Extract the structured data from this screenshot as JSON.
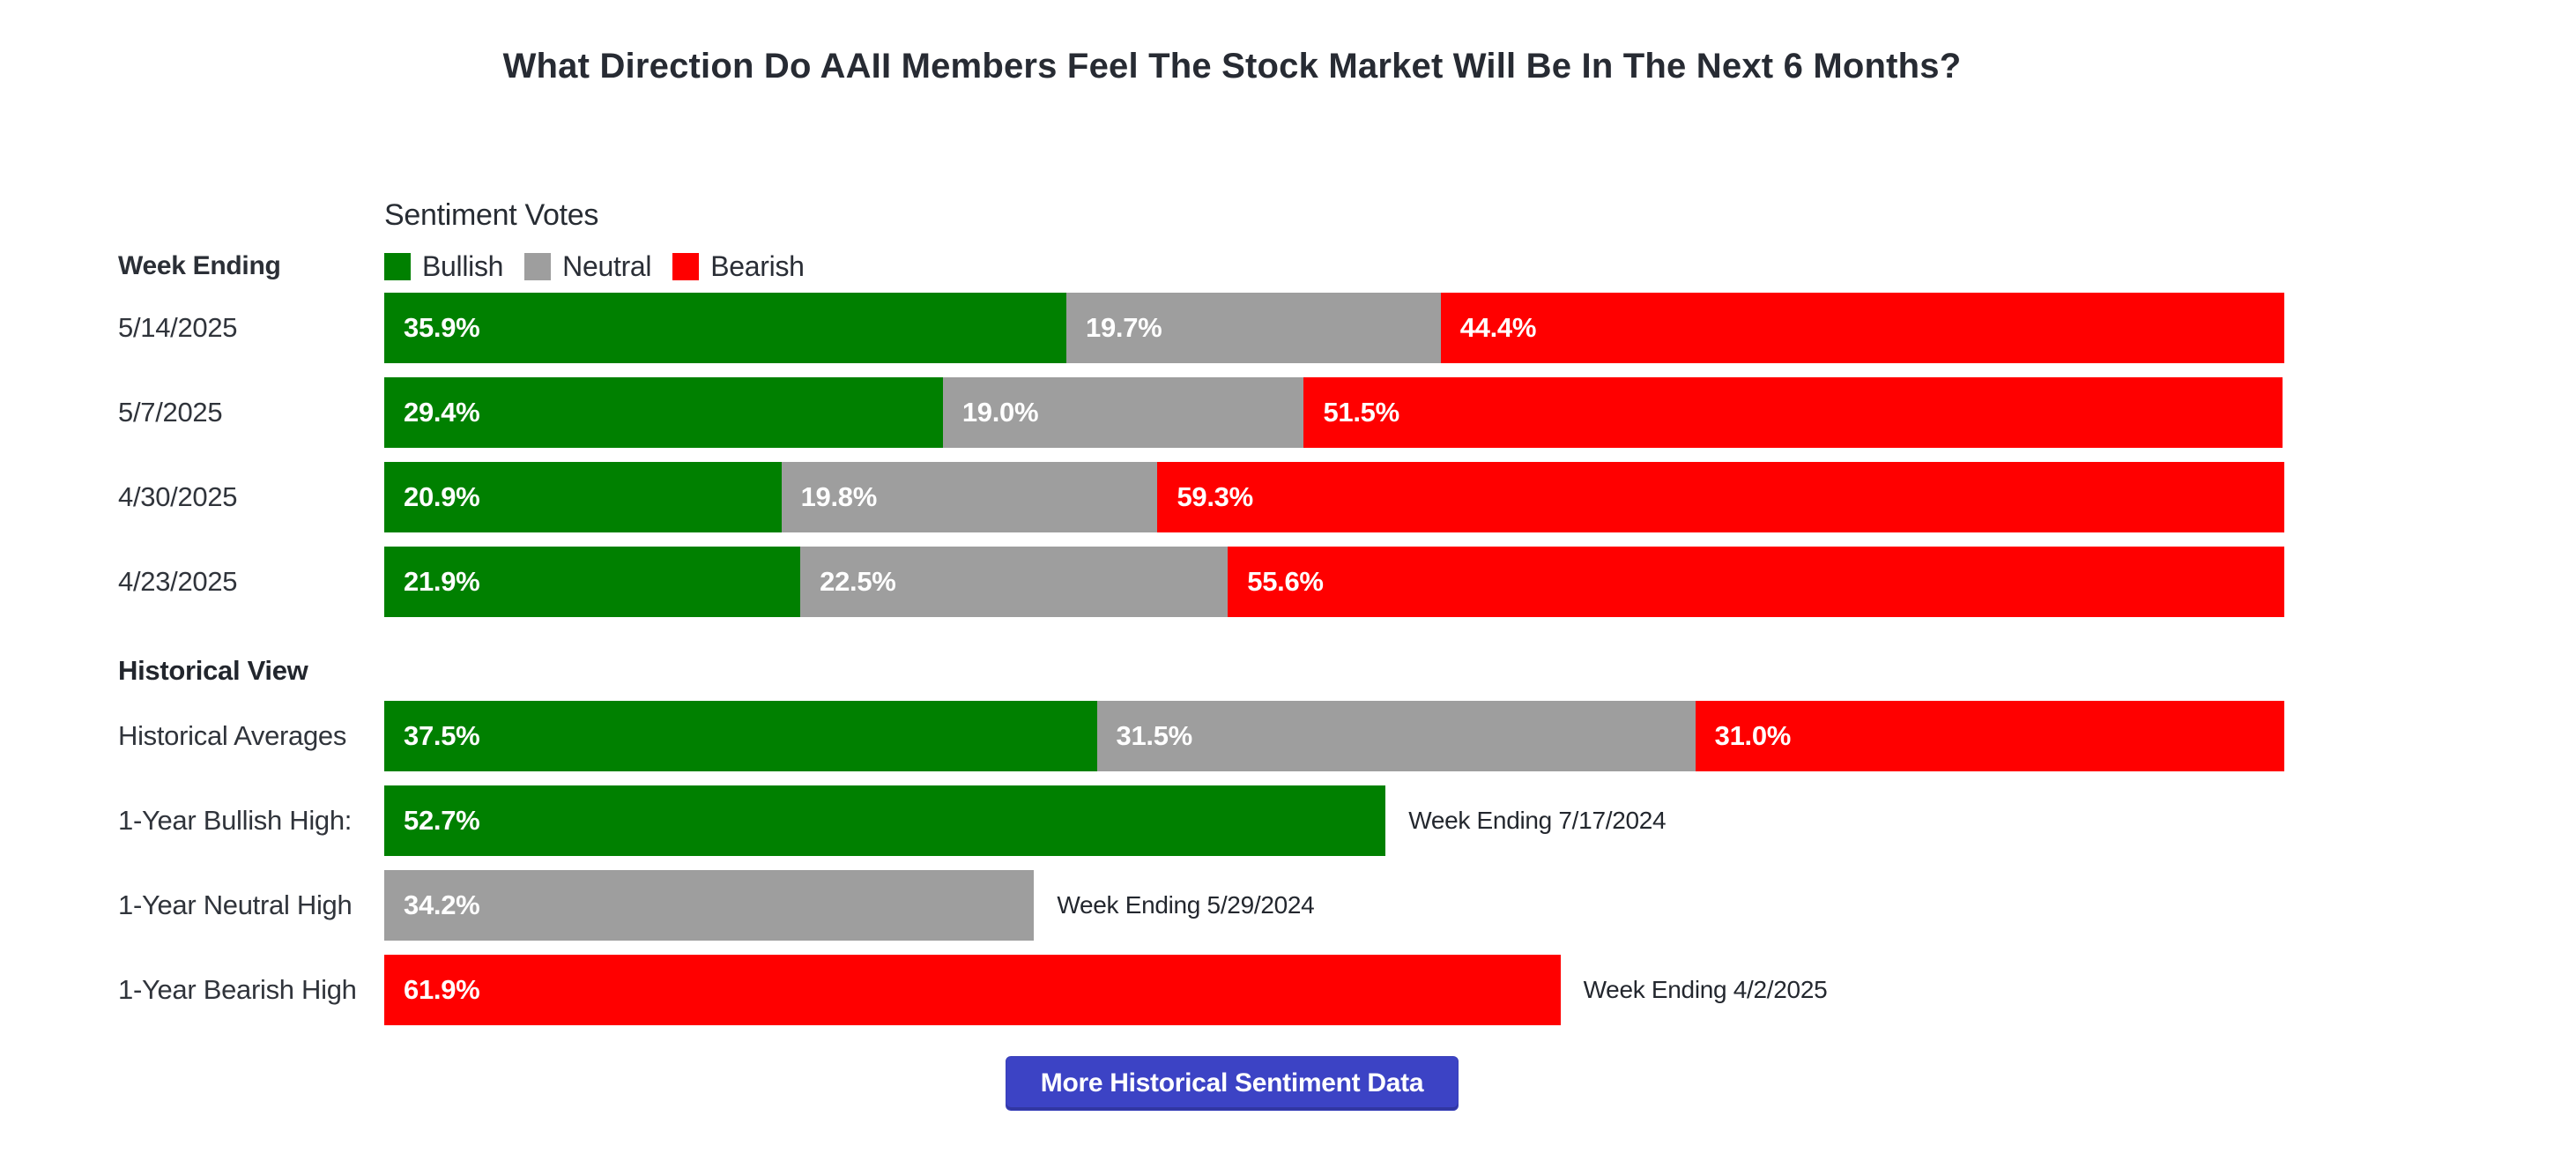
{
  "title": "What Direction Do AAII Members Feel The Stock Market Will Be In The Next 6 Months?",
  "chart_header": {
    "subtitle": "Sentiment Votes",
    "row_label_header": "Week Ending"
  },
  "colors": {
    "bullish": "#008000",
    "neutral": "#9e9e9e",
    "bearish": "#ff0000",
    "button": "#3c43c5"
  },
  "legend": {
    "items": [
      {
        "type": "bullish",
        "label": "Bullish"
      },
      {
        "type": "neutral",
        "label": "Neutral"
      },
      {
        "type": "bearish",
        "label": "Bearish"
      }
    ]
  },
  "weekly": {
    "rows": [
      {
        "label": "5/14/2025",
        "segments": [
          {
            "type": "bullish",
            "value": 35.9,
            "display": "35.9%"
          },
          {
            "type": "neutral",
            "value": 19.7,
            "display": "19.7%"
          },
          {
            "type": "bearish",
            "value": 44.4,
            "display": "44.4%"
          }
        ]
      },
      {
        "label": "5/7/2025",
        "segments": [
          {
            "type": "bullish",
            "value": 29.4,
            "display": "29.4%"
          },
          {
            "type": "neutral",
            "value": 19.0,
            "display": "19.0%"
          },
          {
            "type": "bearish",
            "value": 51.5,
            "display": "51.5%"
          }
        ]
      },
      {
        "label": "4/30/2025",
        "segments": [
          {
            "type": "bullish",
            "value": 20.9,
            "display": "20.9%"
          },
          {
            "type": "neutral",
            "value": 19.8,
            "display": "19.8%"
          },
          {
            "type": "bearish",
            "value": 59.3,
            "display": "59.3%"
          }
        ]
      },
      {
        "label": "4/23/2025",
        "segments": [
          {
            "type": "bullish",
            "value": 21.9,
            "display": "21.9%"
          },
          {
            "type": "neutral",
            "value": 22.5,
            "display": "22.5%"
          },
          {
            "type": "bearish",
            "value": 55.6,
            "display": "55.6%"
          }
        ]
      }
    ]
  },
  "historical": {
    "heading": "Historical View",
    "rows": [
      {
        "label": "Historical Averages",
        "segments": [
          {
            "type": "bullish",
            "value": 37.5,
            "display": "37.5%"
          },
          {
            "type": "neutral",
            "value": 31.5,
            "display": "31.5%"
          },
          {
            "type": "bearish",
            "value": 31.0,
            "display": "31.0%"
          }
        ],
        "annotation": ""
      },
      {
        "label": "1-Year Bullish High:",
        "segments": [
          {
            "type": "bullish",
            "value": 52.7,
            "display": "52.7%"
          }
        ],
        "annotation": "Week Ending 7/17/2024"
      },
      {
        "label": "1-Year Neutral High",
        "segments": [
          {
            "type": "neutral",
            "value": 34.2,
            "display": "34.2%"
          }
        ],
        "annotation": "Week Ending 5/29/2024"
      },
      {
        "label": "1-Year Bearish High",
        "segments": [
          {
            "type": "bearish",
            "value": 61.9,
            "display": "61.9%"
          }
        ],
        "annotation": "Week Ending 4/2/2025"
      }
    ]
  },
  "action": {
    "button_label": "More Historical Sentiment Data"
  },
  "chart_data": {
    "type": "bar",
    "subtype": "stacked-horizontal",
    "title": "Sentiment Votes",
    "xlabel": "",
    "ylabel": "Week Ending",
    "xlim": [
      0,
      100
    ],
    "grid": false,
    "legend_position": "top",
    "categories": [
      "5/14/2025",
      "5/7/2025",
      "4/30/2025",
      "4/23/2025"
    ],
    "series": [
      {
        "name": "Bullish",
        "color": "#008000",
        "values": [
          35.9,
          29.4,
          20.9,
          21.9
        ]
      },
      {
        "name": "Neutral",
        "color": "#9e9e9e",
        "values": [
          19.7,
          19.0,
          19.8,
          22.5
        ]
      },
      {
        "name": "Bearish",
        "color": "#ff0000",
        "values": [
          44.4,
          51.5,
          59.3,
          55.6
        ]
      }
    ],
    "historical_view": {
      "historical_averages": {
        "bullish": 37.5,
        "neutral": 31.5,
        "bearish": 31.0
      },
      "one_year_bullish_high": {
        "value": 52.7,
        "week_ending": "7/17/2024"
      },
      "one_year_neutral_high": {
        "value": 34.2,
        "week_ending": "5/29/2024"
      },
      "one_year_bearish_high": {
        "value": 61.9,
        "week_ending": "4/2/2025"
      }
    }
  }
}
